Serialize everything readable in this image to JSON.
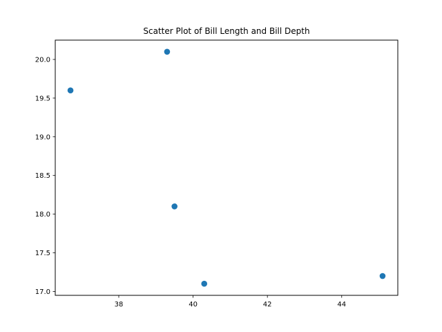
{
  "chart_data": {
    "type": "scatter",
    "title": "Scatter Plot of Bill Length and Bill Depth",
    "xlabel": "",
    "ylabel": "",
    "x": [
      36.7,
      39.3,
      39.5,
      40.3,
      45.1
    ],
    "y": [
      19.6,
      20.1,
      18.1,
      17.1,
      17.2
    ],
    "xlim": [
      36.29,
      45.51
    ],
    "ylim": [
      16.95,
      20.25
    ],
    "xticks": [
      38,
      40,
      42,
      44
    ],
    "yticks": [
      17.0,
      17.5,
      18.0,
      18.5,
      19.0,
      19.5,
      20.0
    ],
    "xtick_labels": [
      "38",
      "40",
      "42",
      "44"
    ],
    "ytick_labels": [
      "17.0",
      "17.5",
      "18.0",
      "18.5",
      "19.0",
      "19.5",
      "20.0"
    ],
    "grid": false,
    "legend": "none",
    "colors": {
      "marker": "#1f77b4",
      "axes": "#000000",
      "background": "#ffffff"
    }
  }
}
